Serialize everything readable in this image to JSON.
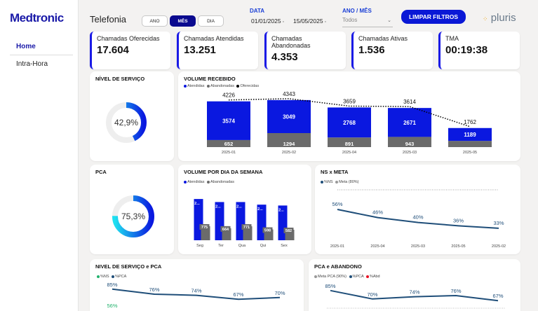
{
  "sidebar": {
    "logo": "Medtronic",
    "items": [
      {
        "label": "Home"
      },
      {
        "label": "Intra-Hora"
      }
    ]
  },
  "header": {
    "title": "Telefonia",
    "toggle": [
      "ANO",
      "MÊS",
      "DIA"
    ],
    "active_toggle": "MÊS",
    "date_label": "DATA",
    "date_start": "01/01/2025",
    "date_end": "15/05/2025",
    "year_month_label": "ANO / MÊS",
    "year_month_value": "Todos",
    "clear_button": "LIMPAR FILTROS",
    "brand": "pluris"
  },
  "kpis": [
    {
      "label": "Chamadas Oferecidas",
      "value": "17.604"
    },
    {
      "label": "Chamadas Atendidas",
      "value": "13.251"
    },
    {
      "label": "Chamadas Abandonadas",
      "value": "4.353"
    },
    {
      "label": "Chamadas Ativas",
      "value": "1.536"
    },
    {
      "label": "TMA",
      "value": "00:19:38"
    }
  ],
  "colors": {
    "blue": "#0a18e0",
    "gray": "#6b6b6b",
    "cyan": "#1ee0f0",
    "navy": "#1f4e79",
    "red": "#e81123",
    "green": "#23b26d"
  },
  "gauges": {
    "nivel_servico": {
      "title": "NÍVEL DE SERVIÇO",
      "value": 0.429,
      "label": "42,9%"
    },
    "pca": {
      "title": "PCA",
      "value": 0.753,
      "label": "75,3%"
    }
  },
  "chart_data": [
    {
      "id": "volume_recebido",
      "type": "bar",
      "title": "VOLUME RECEBIDO",
      "legend": [
        "Atendidas",
        "Abandonadas",
        "Oferecidas"
      ],
      "categories": [
        "2025-01",
        "2025-02",
        "2025-04",
        "2025-03",
        "2025-05"
      ],
      "series": [
        {
          "name": "Atendidas",
          "values": [
            3574,
            3049,
            2768,
            2671,
            1189
          ]
        },
        {
          "name": "Abandonadas",
          "values": [
            652,
            1294,
            891,
            943,
            573
          ]
        },
        {
          "name": "Oferecidas",
          "values": [
            4226,
            4343,
            3659,
            3614,
            1762
          ]
        }
      ],
      "abandon_labels": [
        "652",
        "1294",
        "891",
        "943",
        ""
      ],
      "ylim": [
        0,
        4600
      ]
    },
    {
      "id": "volume_dia_semana",
      "type": "bar",
      "title": "VOLUME POR DIA DA SEMANA",
      "legend": [
        "Atendidas",
        "Abandonadas"
      ],
      "categories": [
        "Seg",
        "Ter",
        "Qua",
        "Qui",
        "Sex"
      ],
      "series": [
        {
          "name": "Atendidas",
          "labels": [
            "2...",
            "2...",
            "2...",
            "2...",
            "2..."
          ]
        },
        {
          "name": "Abandonadas",
          "values": [
            775,
            664,
            771,
            598,
            582
          ]
        }
      ],
      "atendidas_fraction": [
        0.95,
        0.88,
        0.88,
        0.82,
        0.8
      ]
    },
    {
      "id": "ns_x_meta",
      "type": "line",
      "title": "NS x META",
      "legend": [
        "%NS",
        "Meta (80%)"
      ],
      "categories": [
        "2025-01",
        "2025-04",
        "2025-03",
        "2025-05",
        "2025-02"
      ],
      "series": [
        {
          "name": "%NS",
          "values": [
            56,
            46,
            40,
            36,
            33
          ],
          "labels": [
            "56%",
            "46%",
            "40%",
            "36%",
            "33%"
          ]
        },
        {
          "name": "Meta (80%)",
          "values": [
            80,
            80,
            80,
            80,
            80
          ]
        }
      ]
    },
    {
      "id": "nivel_servico_pca",
      "type": "line",
      "title": "NIVEL DE SERVIÇO e PCA",
      "legend": [
        "%NS",
        "%PCA"
      ],
      "series": [
        {
          "name": "%PCA",
          "values": [
            85,
            76,
            74,
            67,
            70
          ],
          "labels": [
            "85%",
            "76%",
            "74%",
            "67%",
            "70%"
          ]
        },
        {
          "name": "%NS",
          "values": [
            56
          ],
          "labels": [
            "56%"
          ]
        }
      ]
    },
    {
      "id": "pca_abandono",
      "type": "line",
      "title": "PCA e ABANDONO",
      "legend": [
        "Meta PCA (90%)",
        "%PCA",
        "%Abd"
      ],
      "series": [
        {
          "name": "%PCA",
          "values": [
            85,
            70,
            74,
            76,
            67
          ],
          "labels": [
            "85%",
            "70%",
            "74%",
            "76%",
            "67%"
          ]
        }
      ]
    }
  ]
}
